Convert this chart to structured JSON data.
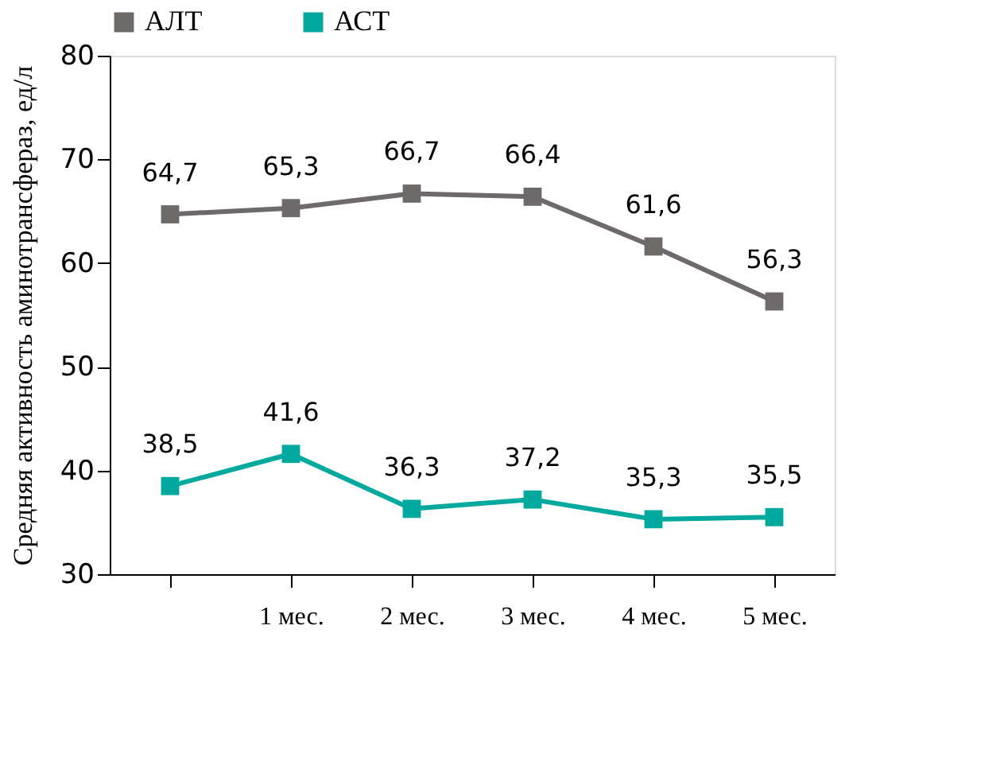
{
  "chart_data": {
    "type": "line",
    "ylabel": "Средняя активность аминотрансфераз, ед/л",
    "categories": [
      null,
      "1 мес.",
      "2 мес.",
      "3 мес.",
      "4 мес.",
      "5 мес."
    ],
    "series": [
      {
        "name": "АЛТ",
        "color": "#6d6a69",
        "values": [
          64.7,
          65.3,
          66.7,
          66.4,
          61.6,
          56.3
        ],
        "value_labels": [
          "64,7",
          "65,3",
          "66,7",
          "66,4",
          "61,6",
          "56,3"
        ]
      },
      {
        "name": "АСТ",
        "color": "#00a99d",
        "values": [
          38.5,
          41.6,
          36.3,
          37.2,
          35.3,
          35.5
        ],
        "value_labels": [
          "38,5",
          "41,6",
          "36,3",
          "37,2",
          "35,3",
          "35,5"
        ]
      }
    ],
    "ylim": [
      30,
      80
    ],
    "yticks": [
      30,
      40,
      50,
      60,
      70,
      80
    ],
    "grid": false,
    "legend": "top",
    "marker": "square",
    "line_style": "solid"
  }
}
